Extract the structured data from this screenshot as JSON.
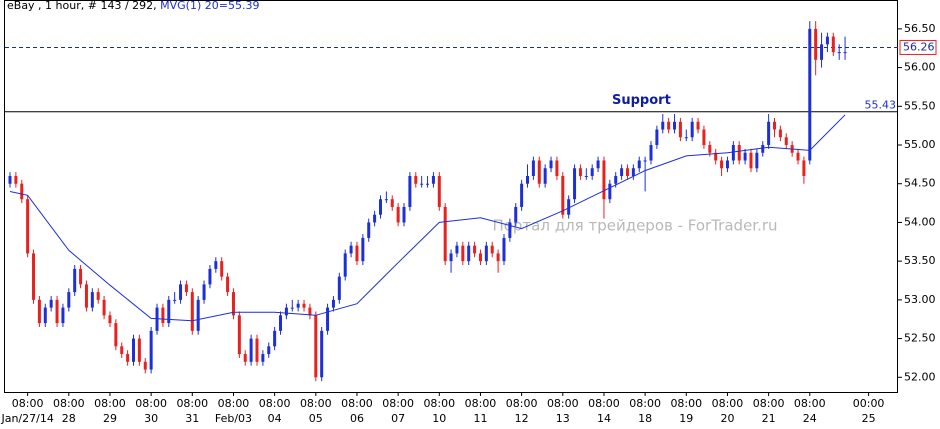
{
  "chart_data": {
    "type": "candlestick",
    "title": "eBay , 1 hour, # 143 / 292,",
    "indicator_label": "MVG(1) 20=55.39",
    "watermark": "Портал для трейдеров - ForTrader.ru",
    "up_color": "#1c2fd8",
    "down_color": "#e8201e",
    "candles": [
      [
        54.5,
        54.65,
        54.45,
        54.6
      ],
      [
        54.6,
        54.65,
        54.45,
        54.5
      ],
      [
        54.5,
        54.55,
        54.25,
        54.3
      ],
      [
        54.3,
        54.35,
        53.55,
        53.6
      ],
      [
        53.6,
        53.65,
        52.95,
        53.0
      ],
      [
        53.0,
        53.05,
        52.65,
        52.7
      ],
      [
        52.7,
        52.95,
        52.65,
        52.9
      ],
      [
        52.9,
        53.05,
        52.85,
        53.0
      ],
      [
        53.0,
        53.05,
        52.65,
        52.7
      ],
      [
        52.7,
        52.95,
        52.65,
        52.9
      ],
      [
        52.9,
        53.15,
        52.85,
        53.1
      ],
      [
        53.1,
        53.45,
        53.05,
        53.4
      ],
      [
        53.4,
        53.45,
        53.15,
        53.2
      ],
      [
        53.2,
        53.25,
        52.85,
        52.9
      ],
      [
        52.9,
        53.15,
        52.85,
        53.1
      ],
      [
        53.1,
        53.15,
        52.95,
        53.0
      ],
      [
        53.0,
        53.05,
        52.75,
        52.8
      ],
      [
        52.8,
        52.85,
        52.65,
        52.7
      ],
      [
        52.7,
        52.75,
        52.35,
        52.4
      ],
      [
        52.4,
        52.45,
        52.25,
        52.3
      ],
      [
        52.3,
        52.35,
        52.15,
        52.2
      ],
      [
        52.2,
        52.55,
        52.15,
        52.5
      ],
      [
        52.5,
        52.55,
        52.15,
        52.2
      ],
      [
        52.2,
        52.25,
        52.05,
        52.1
      ],
      [
        52.1,
        52.65,
        52.05,
        52.6
      ],
      [
        52.6,
        52.95,
        52.55,
        52.9
      ],
      [
        52.9,
        52.95,
        52.65,
        52.7
      ],
      [
        52.7,
        53.05,
        52.65,
        53.0
      ],
      [
        53.0,
        53.1,
        52.95,
        53.0
      ],
      [
        53.0,
        53.25,
        52.95,
        53.2
      ],
      [
        53.2,
        53.25,
        53.05,
        53.1
      ],
      [
        53.1,
        53.15,
        52.55,
        52.6
      ],
      [
        52.6,
        53.05,
        52.55,
        53.0
      ],
      [
        53.0,
        53.25,
        52.95,
        53.2
      ],
      [
        53.2,
        53.45,
        53.15,
        53.4
      ],
      [
        53.4,
        53.55,
        53.35,
        53.5
      ],
      [
        53.5,
        53.55,
        53.25,
        53.3
      ],
      [
        53.3,
        53.35,
        53.05,
        53.1
      ],
      [
        53.1,
        53.15,
        52.75,
        52.8
      ],
      [
        52.8,
        52.85,
        52.25,
        52.3
      ],
      [
        52.3,
        52.35,
        52.15,
        52.2
      ],
      [
        52.2,
        52.55,
        52.15,
        52.5
      ],
      [
        52.5,
        52.55,
        52.15,
        52.2
      ],
      [
        52.2,
        52.35,
        52.15,
        52.3
      ],
      [
        52.3,
        52.45,
        52.25,
        52.4
      ],
      [
        52.4,
        52.65,
        52.35,
        52.6
      ],
      [
        52.6,
        52.85,
        52.55,
        52.8
      ],
      [
        52.8,
        52.95,
        52.75,
        52.9
      ],
      [
        52.9,
        53.0,
        52.85,
        52.9
      ],
      [
        52.9,
        53.0,
        52.85,
        52.95
      ],
      [
        52.95,
        53.0,
        52.85,
        52.9
      ],
      [
        52.9,
        52.95,
        52.75,
        52.8
      ],
      [
        52.8,
        52.85,
        51.95,
        52.0
      ],
      [
        52.0,
        52.65,
        51.95,
        52.6
      ],
      [
        52.6,
        52.95,
        52.55,
        52.9
      ],
      [
        52.9,
        53.05,
        52.85,
        53.0
      ],
      [
        53.0,
        53.35,
        52.95,
        53.3
      ],
      [
        53.3,
        53.65,
        53.25,
        53.6
      ],
      [
        53.6,
        53.75,
        53.55,
        53.7
      ],
      [
        53.7,
        53.75,
        53.45,
        53.5
      ],
      [
        53.5,
        53.85,
        53.45,
        53.8
      ],
      [
        53.8,
        54.05,
        53.75,
        54.0
      ],
      [
        54.0,
        54.15,
        53.95,
        54.1
      ],
      [
        54.1,
        54.35,
        54.05,
        54.3
      ],
      [
        54.3,
        54.4,
        54.25,
        54.3
      ],
      [
        54.3,
        54.35,
        54.15,
        54.2
      ],
      [
        54.2,
        54.25,
        53.95,
        54.0
      ],
      [
        54.0,
        54.25,
        53.95,
        54.2
      ],
      [
        54.2,
        54.65,
        54.15,
        54.6
      ],
      [
        54.6,
        54.65,
        54.45,
        54.5
      ],
      [
        54.5,
        54.6,
        54.45,
        54.5
      ],
      [
        54.5,
        54.6,
        54.45,
        54.5
      ],
      [
        54.5,
        54.65,
        54.45,
        54.6
      ],
      [
        54.6,
        54.65,
        54.15,
        54.2
      ],
      [
        54.2,
        54.25,
        53.45,
        53.5
      ],
      [
        53.5,
        53.65,
        53.35,
        53.6
      ],
      [
        53.6,
        53.75,
        53.55,
        53.7
      ],
      [
        53.7,
        53.75,
        53.45,
        53.5
      ],
      [
        53.5,
        53.75,
        53.45,
        53.7
      ],
      [
        53.7,
        53.75,
        53.55,
        53.6
      ],
      [
        53.6,
        53.65,
        53.45,
        53.5
      ],
      [
        53.5,
        53.75,
        53.45,
        53.7
      ],
      [
        53.7,
        53.75,
        53.55,
        53.6
      ],
      [
        53.6,
        53.65,
        53.35,
        53.5
      ],
      [
        53.5,
        53.85,
        53.45,
        53.8
      ],
      [
        53.8,
        54.05,
        53.75,
        54.0
      ],
      [
        54.0,
        54.25,
        53.95,
        54.2
      ],
      [
        54.2,
        54.55,
        54.15,
        54.5
      ],
      [
        54.5,
        54.75,
        54.45,
        54.6
      ],
      [
        54.6,
        54.85,
        54.55,
        54.8
      ],
      [
        54.8,
        54.85,
        54.45,
        54.5
      ],
      [
        54.5,
        54.75,
        54.45,
        54.7
      ],
      [
        54.7,
        54.85,
        54.65,
        54.8
      ],
      [
        54.8,
        54.85,
        54.55,
        54.6
      ],
      [
        54.6,
        54.65,
        54.05,
        54.1
      ],
      [
        54.1,
        54.35,
        54.05,
        54.3
      ],
      [
        54.3,
        54.75,
        54.25,
        54.7
      ],
      [
        54.7,
        54.75,
        54.55,
        54.6
      ],
      [
        54.6,
        54.7,
        54.55,
        54.6
      ],
      [
        54.6,
        54.75,
        54.55,
        54.7
      ],
      [
        54.7,
        54.85,
        54.65,
        54.8
      ],
      [
        54.8,
        54.85,
        54.05,
        54.3
      ],
      [
        54.3,
        54.55,
        54.25,
        54.5
      ],
      [
        54.5,
        54.65,
        54.45,
        54.6
      ],
      [
        54.6,
        54.75,
        54.55,
        54.7
      ],
      [
        54.7,
        54.75,
        54.55,
        54.6
      ],
      [
        54.6,
        54.75,
        54.55,
        54.7
      ],
      [
        54.7,
        54.85,
        54.65,
        54.8
      ],
      [
        54.8,
        54.85,
        54.4,
        54.8
      ],
      [
        54.8,
        55.05,
        54.75,
        55.0
      ],
      [
        55.0,
        55.25,
        54.95,
        55.2
      ],
      [
        55.2,
        55.4,
        55.15,
        55.3
      ],
      [
        55.3,
        55.35,
        55.15,
        55.2
      ],
      [
        55.2,
        55.4,
        55.15,
        55.3
      ],
      [
        55.3,
        55.35,
        55.05,
        55.1
      ],
      [
        55.1,
        55.2,
        55.05,
        55.1
      ],
      [
        55.1,
        55.35,
        55.05,
        55.3
      ],
      [
        55.3,
        55.35,
        55.15,
        55.2
      ],
      [
        55.2,
        55.25,
        54.95,
        55.0
      ],
      [
        55.0,
        55.05,
        54.85,
        54.9
      ],
      [
        54.9,
        54.95,
        54.75,
        54.8
      ],
      [
        54.8,
        54.85,
        54.6,
        54.7
      ],
      [
        54.7,
        54.85,
        54.65,
        54.8
      ],
      [
        54.8,
        55.05,
        54.75,
        55.0
      ],
      [
        55.0,
        55.05,
        54.75,
        54.8
      ],
      [
        54.8,
        54.95,
        54.75,
        54.9
      ],
      [
        54.9,
        54.95,
        54.65,
        54.7
      ],
      [
        54.7,
        54.95,
        54.65,
        54.9
      ],
      [
        54.9,
        55.05,
        54.85,
        55.0
      ],
      [
        55.0,
        55.4,
        54.95,
        55.3
      ],
      [
        55.3,
        55.35,
        55.1,
        55.2
      ],
      [
        55.2,
        55.25,
        55.05,
        55.1
      ],
      [
        55.1,
        55.15,
        54.95,
        55.0
      ],
      [
        55.0,
        55.05,
        54.85,
        54.9
      ],
      [
        54.9,
        54.95,
        54.75,
        54.8
      ],
      [
        54.8,
        54.85,
        54.5,
        54.6
      ],
      [
        54.8,
        56.6,
        54.75,
        56.5
      ],
      [
        56.5,
        56.6,
        55.9,
        56.1
      ],
      [
        56.1,
        56.45,
        56.0,
        56.3
      ],
      [
        56.3,
        56.45,
        56.2,
        56.4
      ],
      [
        56.4,
        56.45,
        56.15,
        56.2
      ],
      [
        56.2,
        56.3,
        56.1,
        56.2
      ],
      [
        56.2,
        56.4,
        56.1,
        56.2
      ]
    ],
    "moving_average": {
      "color": "#1c2fd8",
      "x": [
        0,
        3,
        10,
        17,
        24,
        31,
        38,
        45,
        52,
        59,
        66,
        73,
        80,
        87,
        94,
        101,
        108,
        115,
        122,
        129,
        136,
        142
      ],
      "values": [
        54.4,
        54.35,
        53.64,
        53.19,
        52.76,
        52.73,
        52.84,
        52.84,
        52.8,
        52.95,
        53.48,
        54.0,
        54.06,
        53.92,
        54.15,
        54.41,
        54.67,
        54.86,
        54.9,
        54.97,
        54.93,
        55.39
      ]
    },
    "support": {
      "text": "Support",
      "value": 55.43,
      "value_label": "55.43"
    },
    "price_line": {
      "value": 56.26,
      "label": "56.26"
    },
    "xlim": [
      -0.85,
      151
    ],
    "ylim": [
      51.81,
      56.86
    ],
    "yticks": [
      {
        "value": 52,
        "label": "52.00"
      },
      {
        "value": 52.5,
        "label": "52.50"
      },
      {
        "value": 53,
        "label": "53.00"
      },
      {
        "value": 53.5,
        "label": "53.50"
      },
      {
        "value": 54,
        "label": "54.00"
      },
      {
        "value": 54.5,
        "label": "54.50"
      },
      {
        "value": 55,
        "label": "55.00"
      },
      {
        "value": 55.5,
        "label": "55.50"
      },
      {
        "value": 56,
        "label": "56.00"
      },
      {
        "value": 56.5,
        "label": "56.50"
      }
    ],
    "xticks": [
      {
        "value": 3,
        "label": "08:00",
        "date": "Jan/27/14"
      },
      {
        "value": 10,
        "label": "08:00",
        "date": "28"
      },
      {
        "value": 17,
        "label": "08:00",
        "date": "29"
      },
      {
        "value": 24,
        "label": "08:00",
        "date": "30"
      },
      {
        "value": 31,
        "label": "08:00",
        "date": "31"
      },
      {
        "value": 38,
        "label": "08:00",
        "date": "Feb/03"
      },
      {
        "value": 45,
        "label": "08:00",
        "date": "04"
      },
      {
        "value": 52,
        "label": "08:00",
        "date": "05"
      },
      {
        "value": 59,
        "label": "08:00",
        "date": "06"
      },
      {
        "value": 66,
        "label": "08:00",
        "date": "07"
      },
      {
        "value": 73,
        "label": "08:00",
        "date": "10"
      },
      {
        "value": 80,
        "label": "08:00",
        "date": "11"
      },
      {
        "value": 87,
        "label": "08:00",
        "date": "12"
      },
      {
        "value": 94,
        "label": "08:00",
        "date": "13"
      },
      {
        "value": 101,
        "label": "08:00",
        "date": "14"
      },
      {
        "value": 108,
        "label": "08:00",
        "date": "18"
      },
      {
        "value": 115,
        "label": "08:00",
        "date": "19"
      },
      {
        "value": 122,
        "label": "08:00",
        "date": "20"
      },
      {
        "value": 129,
        "label": "08:00",
        "date": "21"
      },
      {
        "value": 136,
        "label": "08:00",
        "date": "24"
      },
      {
        "value": 146,
        "label": "00:00",
        "date": "25"
      }
    ]
  }
}
